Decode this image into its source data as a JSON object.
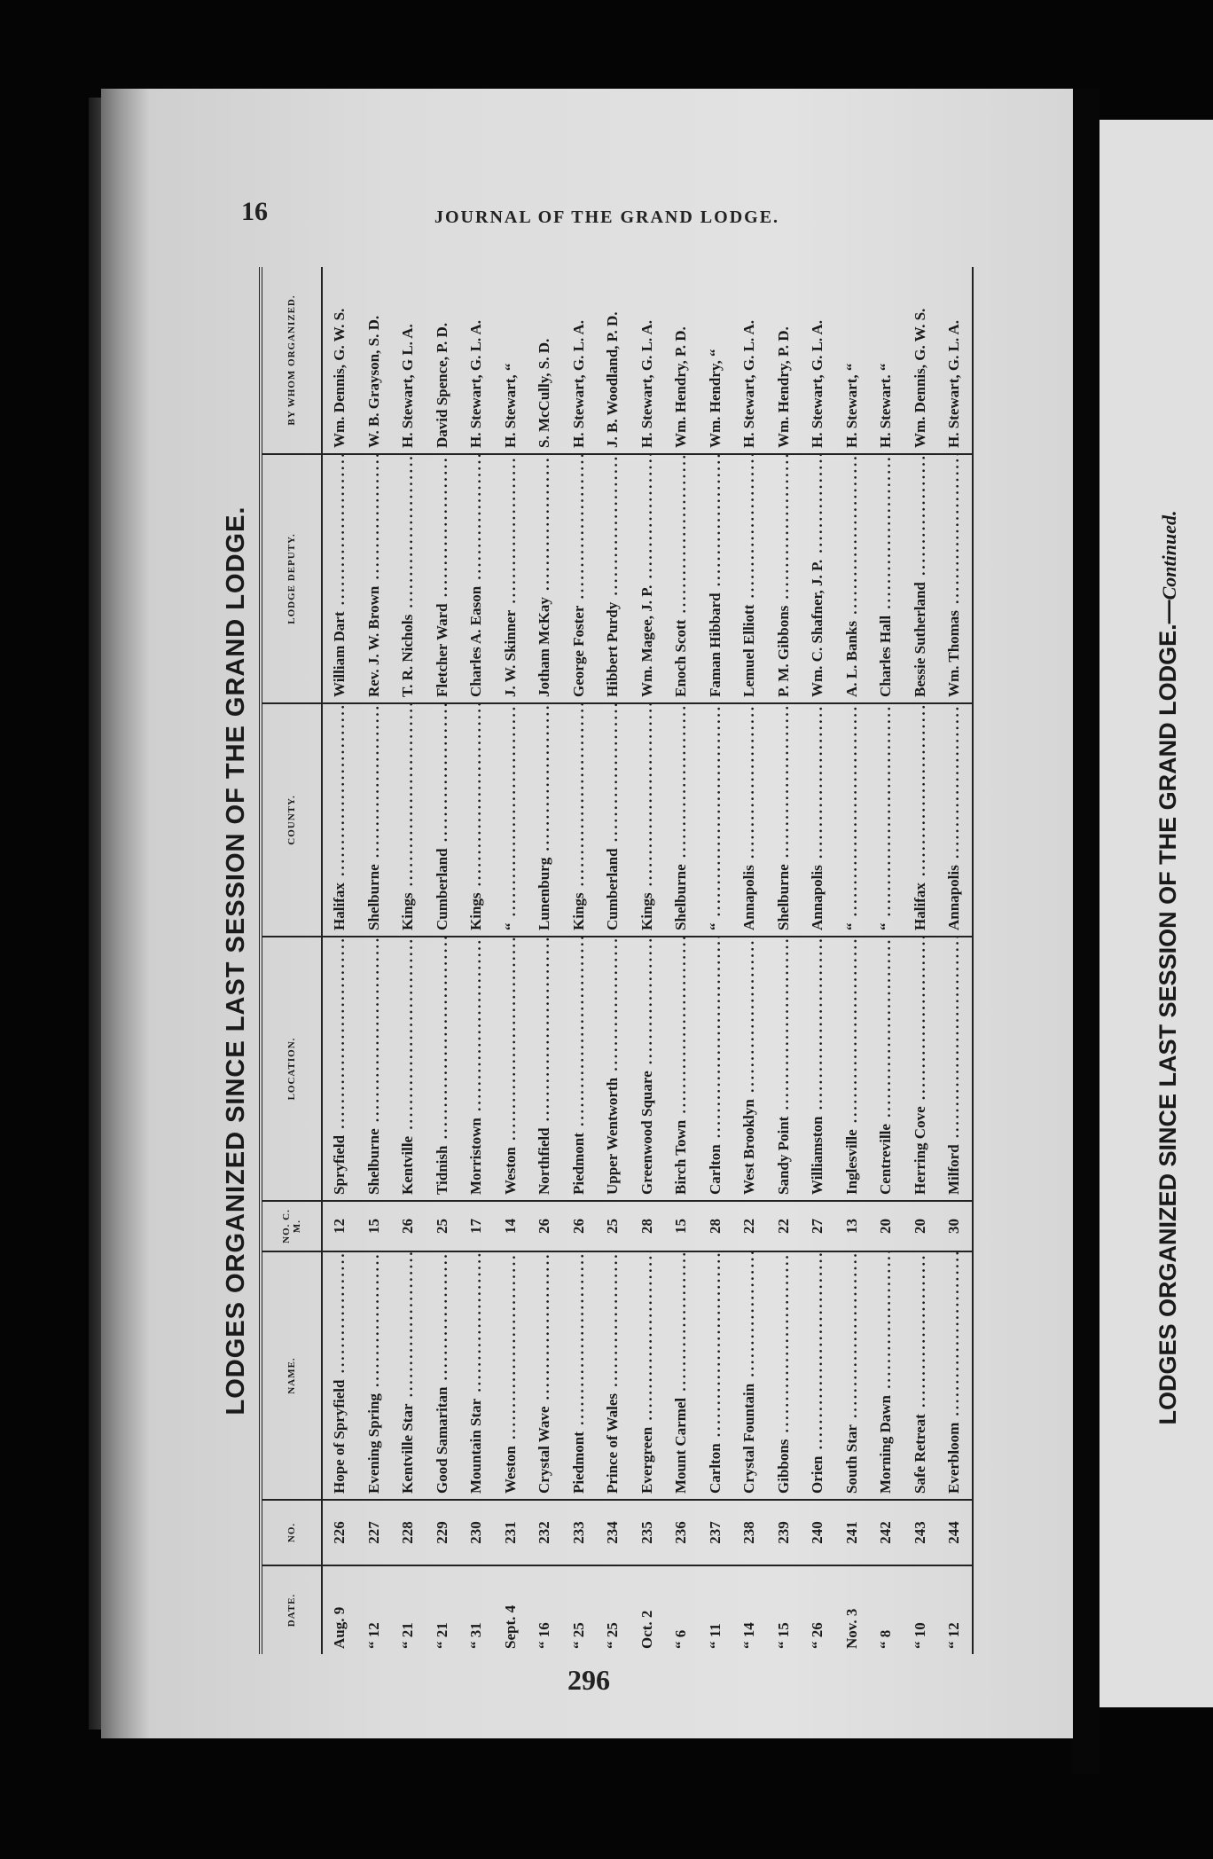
{
  "header": {
    "page_number": "16",
    "journal_title": "JOURNAL OF THE GRAND LODGE.",
    "folio": "296"
  },
  "table": {
    "title": "LODGES ORGANIZED SINCE LAST SESSION OF THE GRAND LODGE.",
    "columns": [
      "DATE.",
      "NO.",
      "NAME.",
      "NO. C. M.",
      "LOCATION.",
      "COUNTY.",
      "LODGE DEPUTY.",
      "BY WHOM ORGANIZED."
    ],
    "rows": [
      [
        "Aug. 9",
        "226",
        "Hope of Spryfield",
        "12",
        "Spryfield",
        "Halifax",
        "William Dart",
        "Wm. Dennis, G. W. S."
      ],
      [
        "“ 12",
        "227",
        "Evening Spring",
        "15",
        "Shelburne",
        "Shelburne",
        "Rev. J. W. Brown",
        "W. B. Grayson, S. D."
      ],
      [
        "“ 21",
        "228",
        "Kentville Star",
        "26",
        "Kentville",
        "Kings",
        "T. R. Nichols",
        "H. Stewart, G L. A."
      ],
      [
        "“ 21",
        "229",
        "Good Samaritan",
        "25",
        "Tidnish",
        "Cumberland",
        "Fletcher Ward",
        "David Spence, P. D."
      ],
      [
        "“ 31",
        "230",
        "Mountain Star",
        "17",
        "Morristown",
        "Kings",
        "Charles A. Eason",
        "H. Stewart, G. L. A."
      ],
      [
        "Sept. 4",
        "231",
        "Weston",
        "14",
        "Weston",
        "“",
        "J. W. Skinner",
        "H. Stewart, “"
      ],
      [
        "“ 16",
        "232",
        "Crystal Wave",
        "26",
        "Northfield",
        "Lunenburg",
        "Jotham McKay",
        "S. McCully, S. D."
      ],
      [
        "“ 25",
        "233",
        "Piedmont",
        "26",
        "Piedmont",
        "Kings",
        "George Foster",
        "H. Stewart, G. L. A."
      ],
      [
        "“ 25",
        "234",
        "Prince of Wales",
        "25",
        "Upper Wentworth",
        "Cumberland",
        "Hibbert Purdy",
        "J. B. Woodland, P. D."
      ],
      [
        "Oct. 2",
        "235",
        "Evergreen",
        "28",
        "Greenwood Square",
        "Kings",
        "Wm. Magee, J. P.",
        "H. Stewart, G. L. A."
      ],
      [
        "“ 6",
        "236",
        "Mount Carmel",
        "15",
        "Birch Town",
        "Shelburne",
        "Enoch Scott",
        "Wm. Hendry, P. D."
      ],
      [
        "“ 11",
        "237",
        "Carlton",
        "28",
        "Carlton",
        "“",
        "Faman Hibbard",
        "Wm. Hendry, “"
      ],
      [
        "“ 14",
        "238",
        "Crystal Fountain",
        "22",
        "West Brooklyn",
        "Annapolis",
        "Lemuel Elliott",
        "H. Stewart, G. L. A."
      ],
      [
        "“ 15",
        "239",
        "Gibbons",
        "22",
        "Sandy Point",
        "Shelburne",
        "P. M. Gibbons",
        "Wm. Hendry, P. D."
      ],
      [
        "“ 26",
        "240",
        "Orien",
        "27",
        "Williamston",
        "Annapolis",
        "Wm. C. Shafner, J. P.",
        "H. Stewart, G. L. A."
      ],
      [
        "Nov. 3",
        "241",
        "South Star",
        "13",
        "Inglesville",
        "“",
        "A. L. Banks",
        "H. Stewart, “"
      ],
      [
        "“ 8",
        "242",
        "Morning Dawn",
        "20",
        "Centreville",
        "“",
        "Charles Hall",
        "H. Stewart. “"
      ],
      [
        "“ 10",
        "243",
        "Safe Retreat",
        "20",
        "Herring Cove",
        "Halifax",
        "Bessie Sutherland",
        "Wm. Dennis, G. W. S."
      ],
      [
        "“ 12",
        "244",
        "Everbloom",
        "30",
        "Milford",
        "Annapolis",
        "Wm. Thomas",
        "H. Stewart, G. L. A."
      ]
    ]
  },
  "right_page": {
    "title": "LODGES ORGANIZED SINCE LAST SESSION OF THE GRAND LODGE.—",
    "title_suffix": "Continued."
  }
}
